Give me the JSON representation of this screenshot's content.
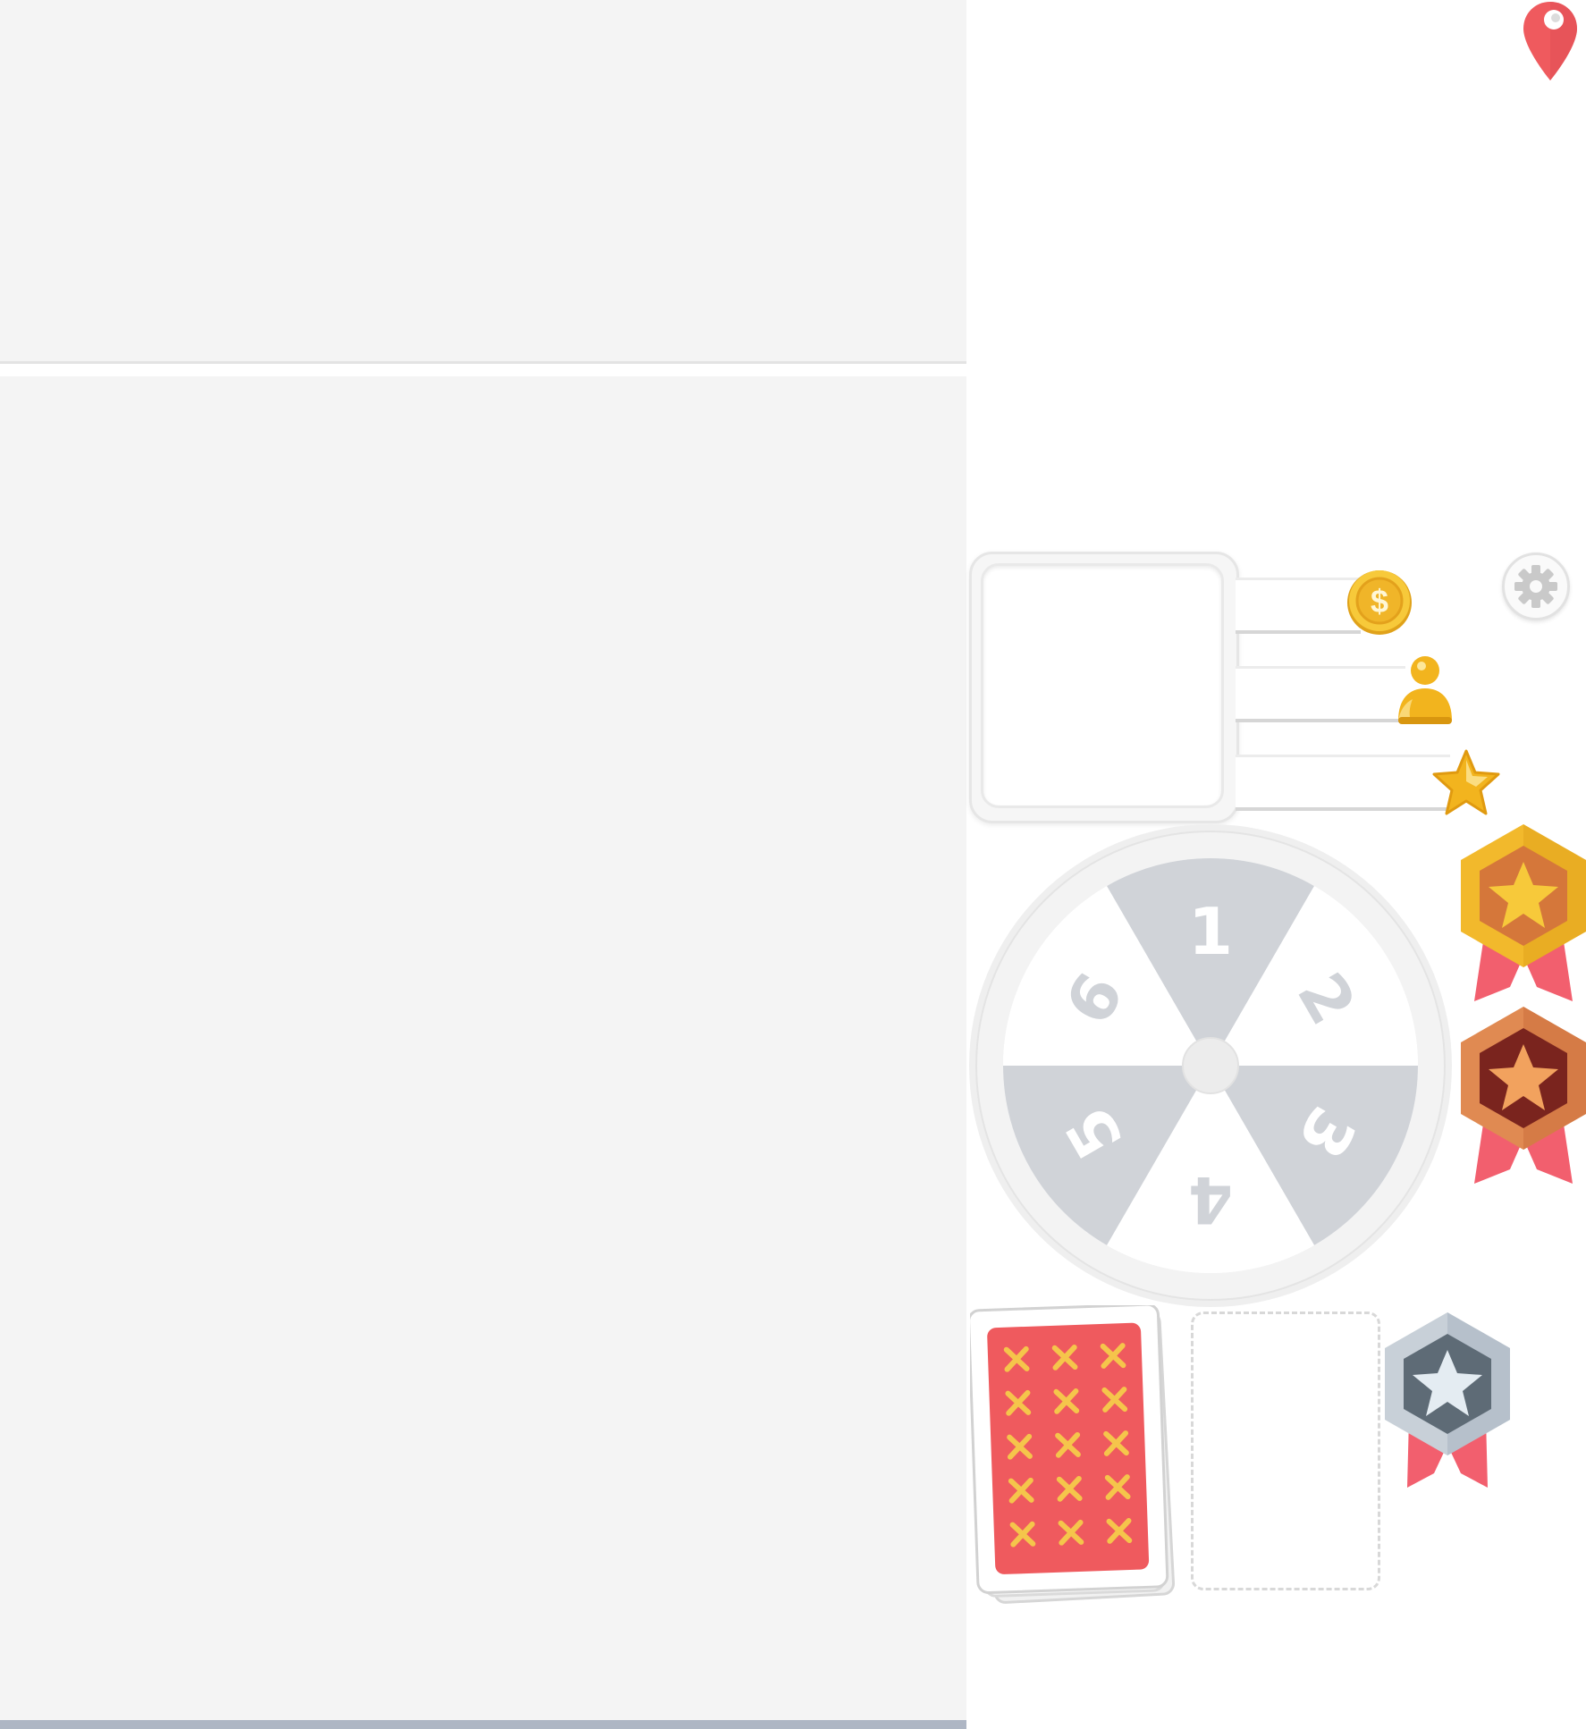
{
  "board": {
    "left_panel_color": "#f4f4f4",
    "bottom_bar_color": "#aeb6c4"
  },
  "map_marker": {
    "icon": "location-pin-icon",
    "color": "#ef5a5e"
  },
  "player": {
    "portrait": {
      "icon": "portrait-frame"
    },
    "stats": [
      {
        "name": "coins",
        "icon": "coin-icon",
        "value": ""
      },
      {
        "name": "players",
        "icon": "person-icon",
        "value": ""
      },
      {
        "name": "stars",
        "icon": "star-icon",
        "value": ""
      }
    ]
  },
  "settings": {
    "icon": "gear-icon"
  },
  "wheel": {
    "segments": [
      "1",
      "2",
      "3",
      "4",
      "5",
      "6"
    ],
    "shaded_color": "#d0d3d8",
    "ring_color": "#efefef"
  },
  "cards": {
    "deck_back_color": "#ef5a5e",
    "deck_pattern_color": "#f5c54b",
    "deck_icon": "card-deck-icon",
    "slot_icon": "empty-card-slot"
  },
  "medals": [
    {
      "name": "gold",
      "icon": "gold-medal-icon",
      "color": "#f2b92c"
    },
    {
      "name": "bronze",
      "icon": "bronze-medal-icon",
      "color": "#d97a45"
    },
    {
      "name": "silver",
      "icon": "silver-medal-icon",
      "color": "#aab6c3"
    }
  ]
}
